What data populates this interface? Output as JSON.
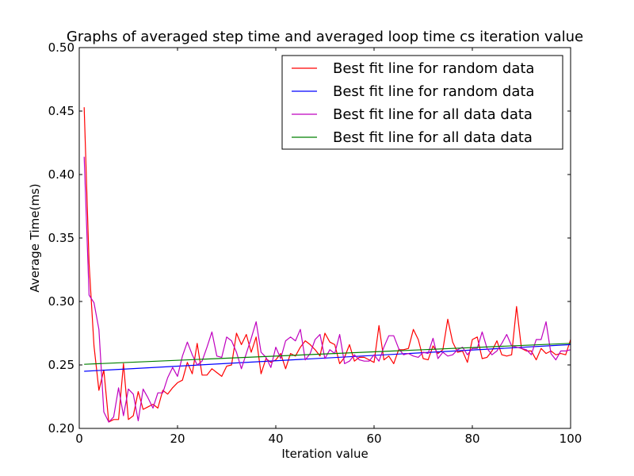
{
  "chart_data": {
    "type": "line",
    "title": "Graphs of averaged step time and averaged loop time cs iteration value",
    "xlabel": "Iteration value",
    "ylabel": "Average Time(ms)",
    "xlim": [
      0,
      100
    ],
    "ylim": [
      0.2,
      0.5
    ],
    "xticks": [
      "0",
      "20",
      "40",
      "60",
      "80",
      "100"
    ],
    "yticks": [
      "0.20",
      "0.25",
      "0.30",
      "0.35",
      "0.40",
      "0.45",
      "0.50"
    ],
    "grid": false,
    "legend_position": "top-right",
    "series": [
      {
        "name": "Best fit line for random data",
        "color": "#ff0000",
        "x": [
          1,
          2,
          3,
          4,
          5,
          6,
          7,
          8,
          9,
          10,
          11,
          12,
          13,
          14,
          15,
          16,
          17,
          18,
          19,
          20,
          21,
          22,
          23,
          24,
          25,
          26,
          27,
          28,
          29,
          30,
          31,
          32,
          33,
          34,
          35,
          36,
          37,
          38,
          39,
          40,
          41,
          42,
          43,
          44,
          45,
          46,
          47,
          48,
          49,
          50,
          51,
          52,
          53,
          54,
          55,
          56,
          57,
          58,
          59,
          60,
          61,
          62,
          63,
          64,
          65,
          66,
          67,
          68,
          69,
          70,
          71,
          72,
          73,
          74,
          75,
          76,
          77,
          78,
          79,
          80,
          81,
          82,
          83,
          84,
          85,
          86,
          87,
          88,
          89,
          90,
          91,
          92,
          93,
          94,
          95,
          96,
          97,
          98,
          99,
          100
        ],
        "y": [
          0.453,
          0.33,
          0.265,
          0.23,
          0.246,
          0.205,
          0.207,
          0.207,
          0.251,
          0.207,
          0.21,
          0.229,
          0.215,
          0.217,
          0.219,
          0.216,
          0.23,
          0.227,
          0.232,
          0.236,
          0.238,
          0.252,
          0.243,
          0.267,
          0.242,
          0.242,
          0.247,
          0.244,
          0.241,
          0.249,
          0.25,
          0.275,
          0.266,
          0.274,
          0.26,
          0.272,
          0.243,
          0.255,
          0.252,
          0.254,
          0.259,
          0.247,
          0.259,
          0.257,
          0.264,
          0.269,
          0.266,
          0.262,
          0.257,
          0.275,
          0.268,
          0.266,
          0.251,
          0.256,
          0.266,
          0.253,
          0.256,
          0.256,
          0.254,
          0.252,
          0.281,
          0.254,
          0.257,
          0.251,
          0.262,
          0.262,
          0.263,
          0.278,
          0.27,
          0.255,
          0.254,
          0.265,
          0.259,
          0.262,
          0.286,
          0.268,
          0.26,
          0.261,
          0.252,
          0.27,
          0.272,
          0.255,
          0.256,
          0.261,
          0.269,
          0.258,
          0.257,
          0.258,
          0.296,
          0.263,
          0.261,
          0.261,
          0.254,
          0.263,
          0.259,
          0.261,
          0.258,
          0.259,
          0.258,
          0.27
        ]
      },
      {
        "name": "Best fit line for random data",
        "color": "#0000ff",
        "x": [
          1,
          100
        ],
        "y": [
          0.245,
          0.266
        ]
      },
      {
        "name": "Best fit line for all data data",
        "color": "#bf00bf",
        "x": [
          1,
          2,
          3,
          4,
          5,
          6,
          7,
          8,
          9,
          10,
          11,
          12,
          13,
          14,
          15,
          16,
          17,
          18,
          19,
          20,
          21,
          22,
          23,
          24,
          25,
          26,
          27,
          28,
          29,
          30,
          31,
          32,
          33,
          34,
          35,
          36,
          37,
          38,
          39,
          40,
          41,
          42,
          43,
          44,
          45,
          46,
          47,
          48,
          49,
          50,
          51,
          52,
          53,
          54,
          55,
          56,
          57,
          58,
          59,
          60,
          61,
          62,
          63,
          64,
          65,
          66,
          67,
          68,
          69,
          70,
          71,
          72,
          73,
          74,
          75,
          76,
          77,
          78,
          79,
          80,
          81,
          82,
          83,
          84,
          85,
          86,
          87,
          88,
          89,
          90,
          91,
          92,
          93,
          94,
          95,
          96,
          97,
          98,
          99,
          100
        ],
        "y": [
          0.414,
          0.305,
          0.299,
          0.278,
          0.213,
          0.205,
          0.209,
          0.232,
          0.21,
          0.231,
          0.227,
          0.206,
          0.231,
          0.224,
          0.216,
          0.228,
          0.228,
          0.24,
          0.248,
          0.241,
          0.257,
          0.268,
          0.258,
          0.25,
          0.253,
          0.264,
          0.276,
          0.257,
          0.256,
          0.272,
          0.269,
          0.26,
          0.247,
          0.259,
          0.271,
          0.284,
          0.26,
          0.256,
          0.248,
          0.264,
          0.255,
          0.269,
          0.272,
          0.269,
          0.278,
          0.254,
          0.259,
          0.27,
          0.274,
          0.255,
          0.262,
          0.259,
          0.274,
          0.251,
          0.253,
          0.258,
          0.254,
          0.253,
          0.253,
          0.258,
          0.253,
          0.264,
          0.273,
          0.273,
          0.263,
          0.258,
          0.259,
          0.257,
          0.256,
          0.26,
          0.259,
          0.271,
          0.255,
          0.26,
          0.257,
          0.258,
          0.262,
          0.264,
          0.258,
          0.263,
          0.263,
          0.276,
          0.263,
          0.258,
          0.261,
          0.267,
          0.274,
          0.265,
          0.264,
          0.263,
          0.262,
          0.258,
          0.27,
          0.27,
          0.284,
          0.259,
          0.254,
          0.261,
          0.261,
          0.262
        ]
      },
      {
        "name": "Best fit line for all data data",
        "color": "#008000",
        "x": [
          1,
          100
        ],
        "y": [
          0.2505,
          0.267
        ]
      }
    ]
  }
}
